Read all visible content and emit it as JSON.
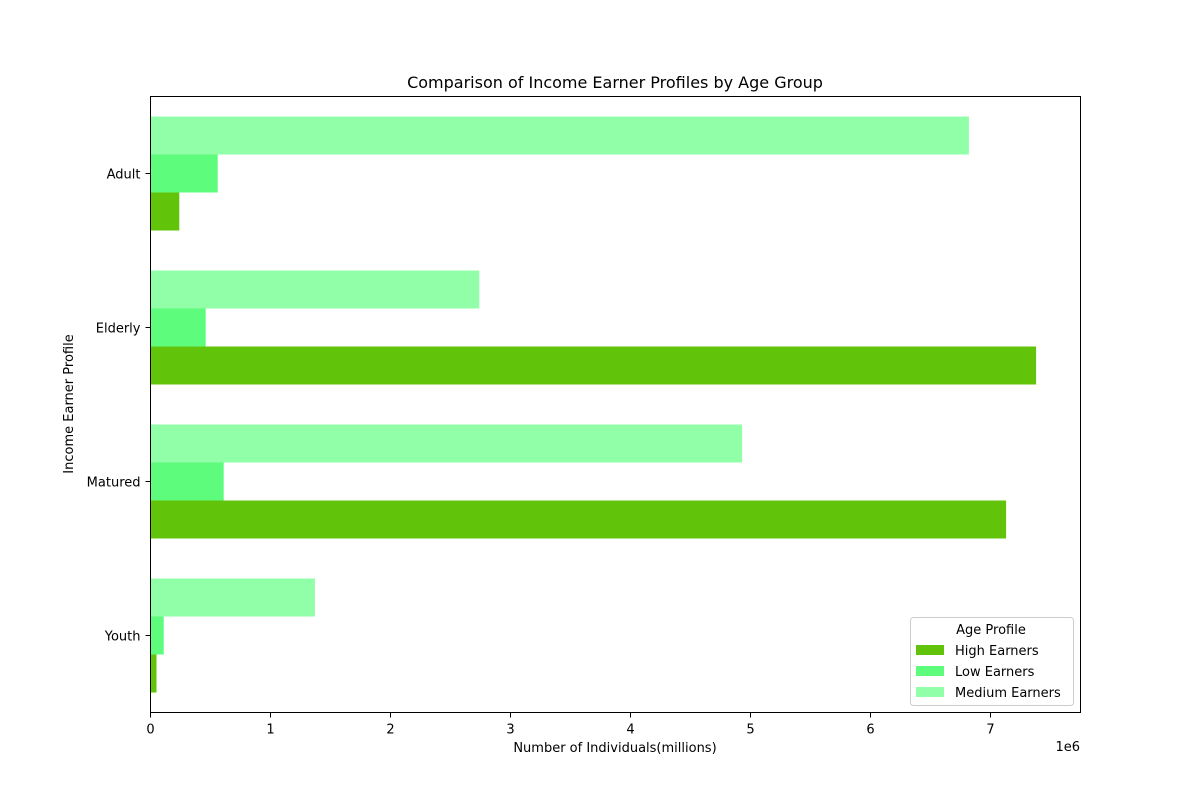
{
  "chart_data": {
    "type": "bar",
    "orientation": "horizontal",
    "title": "Comparison of Income Earner Profiles by Age Group",
    "xlabel": "Number of Individuals(millions)",
    "ylabel": "Income Earner Profile",
    "x_offset_text": "1e6",
    "xlim": [
      0,
      7750000
    ],
    "x_ticks": [
      0,
      1000000,
      2000000,
      3000000,
      4000000,
      5000000,
      6000000,
      7000000
    ],
    "x_tick_labels": [
      "0",
      "1",
      "2",
      "3",
      "4",
      "5",
      "6",
      "7"
    ],
    "categories": [
      "Youth",
      "Matured",
      "Elderly",
      "Adult"
    ],
    "series": [
      {
        "name": "High Earners",
        "color": "#62c30b",
        "values": [
          50000,
          7130000,
          7380000,
          240000
        ]
      },
      {
        "name": "Low Earners",
        "color": "#5efc7c",
        "values": [
          110000,
          610000,
          460000,
          560000
        ]
      },
      {
        "name": "Medium Earners",
        "color": "#90ffa8",
        "values": [
          1370000,
          4930000,
          2740000,
          6820000
        ]
      }
    ],
    "legend": {
      "title": "Age Profile",
      "position": "lower right"
    },
    "grid": false
  }
}
